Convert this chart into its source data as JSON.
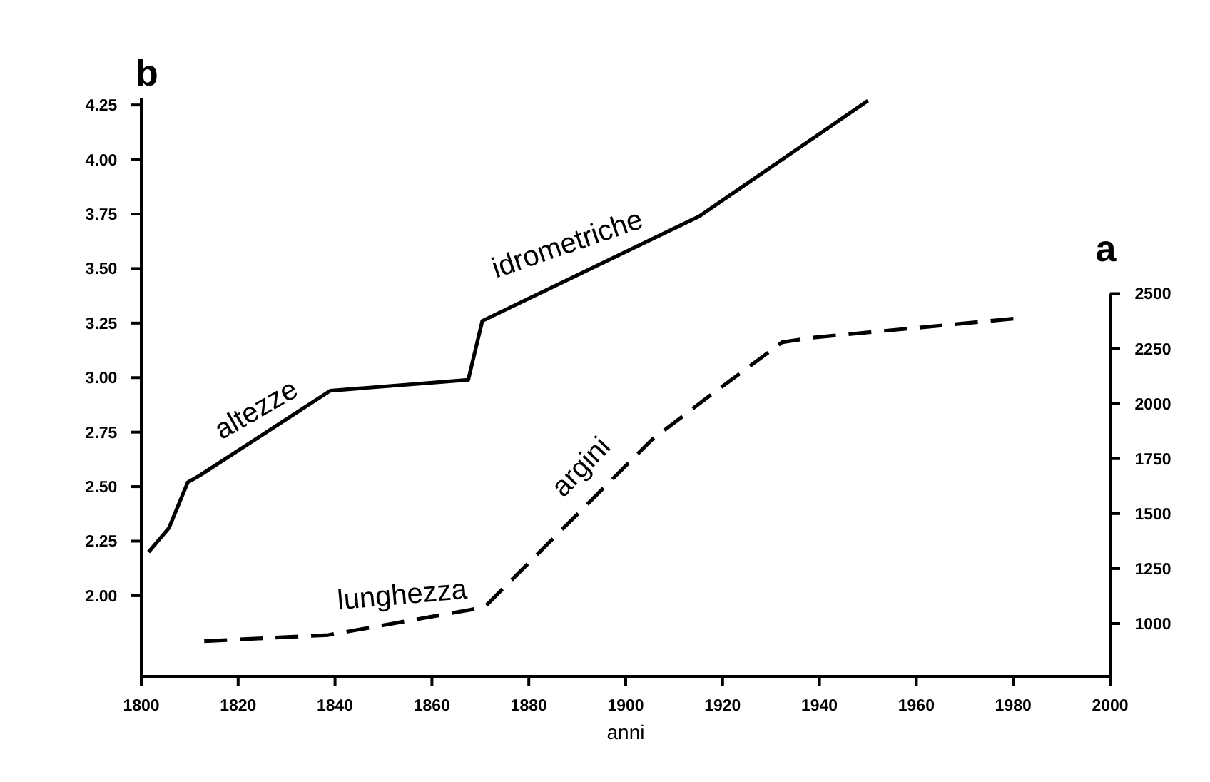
{
  "chart_data": {
    "type": "line",
    "xlabel": "anni",
    "xlim": [
      1800,
      2000
    ],
    "xticks": [
      1800,
      1820,
      1840,
      1860,
      1880,
      1900,
      1920,
      1940,
      1960,
      1980,
      2000
    ],
    "ylim": [
      1.63,
      4.28
    ],
    "yticks": [
      {
        "value": 2,
        "label": "2.00"
      },
      {
        "value": 2.25,
        "label": "2.25"
      },
      {
        "value": 2.5,
        "label": "2.50"
      },
      {
        "value": 2.75,
        "label": "2.75"
      },
      {
        "value": 3,
        "label": "3.00"
      },
      {
        "value": 3.25,
        "label": "3.25"
      },
      {
        "value": 3.5,
        "label": "3.50"
      },
      {
        "value": 3.75,
        "label": "3.75"
      },
      {
        "value": 4,
        "label": "4.00"
      },
      {
        "value": 4.25,
        "label": "4.25"
      }
    ],
    "y2lim": [
      760,
      3387
    ],
    "y2ticks": [
      1000,
      1250,
      1500,
      1750,
      2000,
      2250,
      2500
    ],
    "grid": false,
    "series": [
      {
        "color": "#000000",
        "line_style": "solid",
        "x": [
          1801.5,
          1805.7,
          1809.6,
          1812,
          1839,
          1867.5,
          1870.4,
          1915.2,
          1950
        ],
        "values": [
          2.2,
          2.31,
          2.52,
          2.55,
          2.94,
          2.99,
          3.26,
          3.74,
          4.27
        ]
      },
      {
        "color": "#000000",
        "line_style": "dashed",
        "axis": "y2",
        "x": [
          1813,
          1838.6,
          1868,
          1871,
          1905.4,
          1917,
          1932.3,
          1938.7,
          1981
        ],
        "values": [
          920,
          948,
          1063,
          1078,
          1836,
          2030,
          2279,
          2300,
          2388
        ]
      }
    ],
    "annotations": [
      "altezze",
      "idrometriche",
      "lunghezza",
      "argini",
      "b",
      "a"
    ]
  }
}
